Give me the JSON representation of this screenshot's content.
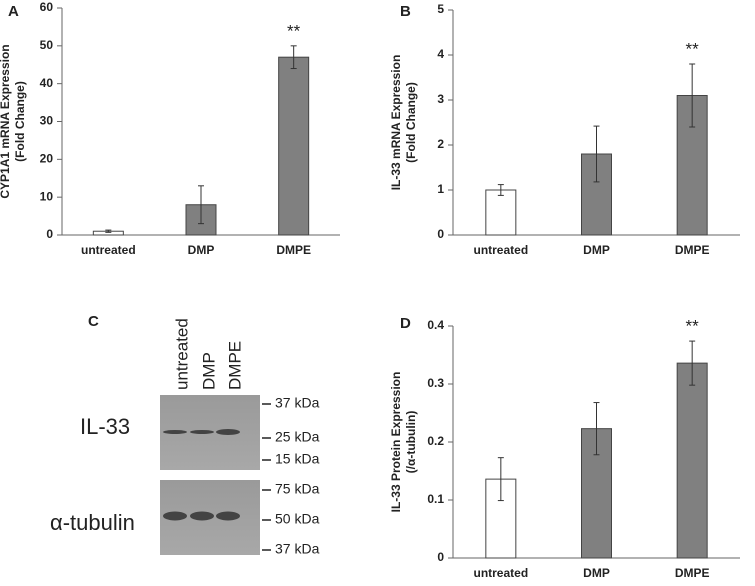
{
  "chart_data": [
    {
      "type": "bar",
      "panel": "A",
      "ylabel": [
        "CYP1A1 mRNA Expression",
        "(Fold Change)"
      ],
      "categories": [
        "untreated",
        "DMP",
        "DMPE"
      ],
      "values": [
        1,
        8,
        47
      ],
      "errors": [
        0.3,
        5,
        3
      ],
      "colors": [
        "#ffffff",
        "#808080",
        "#808080"
      ],
      "value_annotations": [
        null,
        null,
        "**"
      ],
      "ylim": [
        0,
        60
      ],
      "yticks": [
        0,
        10,
        20,
        30,
        40,
        50,
        60
      ]
    },
    {
      "type": "bar",
      "panel": "B",
      "ylabel": [
        "IL-33 mRNA Expression",
        "(Fold Change)"
      ],
      "categories": [
        "untreated",
        "DMP",
        "DMPE"
      ],
      "values": [
        1.0,
        1.8,
        3.1
      ],
      "errors": [
        0.12,
        0.62,
        0.7
      ],
      "colors": [
        "#ffffff",
        "#808080",
        "#808080"
      ],
      "value_annotations": [
        null,
        null,
        "**"
      ],
      "ylim": [
        0,
        5
      ],
      "yticks": [
        0,
        1,
        2,
        3,
        4,
        5
      ]
    },
    {
      "type": "blot",
      "panel": "C",
      "lanes": [
        "untreated",
        "DMP",
        "DMPE"
      ],
      "blots": [
        {
          "name": "IL-33",
          "markers": [
            "37 kDa",
            "25 kDa",
            "15 kDa"
          ]
        },
        {
          "name": "α-tubulin",
          "markers": [
            "75 kDa",
            "50 kDa",
            "37 kDa"
          ]
        }
      ]
    },
    {
      "type": "bar",
      "panel": "D",
      "ylabel": [
        "IL-33 Protein Expression",
        "(/α-tubulin)"
      ],
      "categories": [
        "untreated",
        "DMP",
        "DMPE"
      ],
      "values": [
        0.136,
        0.223,
        0.336
      ],
      "errors": [
        0.037,
        0.045,
        0.038
      ],
      "colors": [
        "#ffffff",
        "#808080",
        "#808080"
      ],
      "value_annotations": [
        null,
        null,
        "**"
      ],
      "ylim": [
        0,
        0.4
      ],
      "yticks": [
        0,
        0.1,
        0.2,
        0.3,
        0.4
      ]
    }
  ]
}
